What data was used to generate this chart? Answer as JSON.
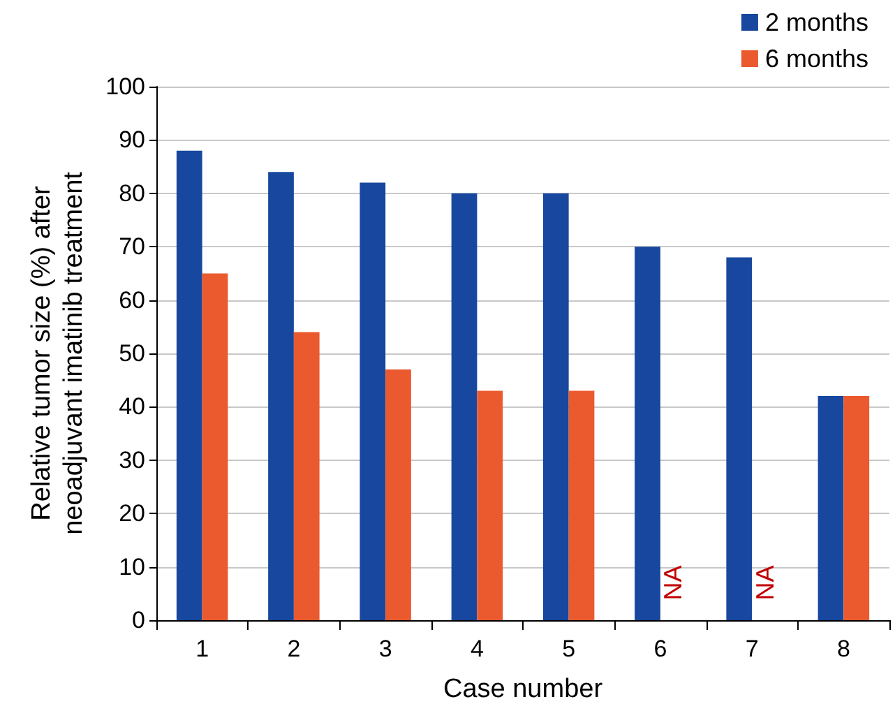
{
  "chart_data": {
    "type": "bar",
    "xlabel": "Case number",
    "ylabel": "Relative tumor size (%) after\nneoadjuvant imatinib treatment",
    "categories": [
      "1",
      "2",
      "3",
      "4",
      "5",
      "6",
      "7",
      "8"
    ],
    "series": [
      {
        "name": "2 months",
        "color": "#17479e",
        "values": [
          88,
          84,
          82,
          80,
          80,
          70,
          68,
          42
        ]
      },
      {
        "name": "6 months",
        "color": "#ea5a2e",
        "values": [
          65,
          54,
          47,
          43,
          43,
          null,
          null,
          42
        ]
      }
    ],
    "annotations": [
      {
        "text": "NA",
        "x": "6",
        "y": 7
      },
      {
        "text": "NA",
        "x": "7",
        "y": 7
      }
    ],
    "ylim": [
      0,
      100
    ],
    "yticks": [
      0,
      10,
      20,
      30,
      40,
      50,
      60,
      70,
      80,
      90,
      100
    ],
    "grid": "y",
    "legend": "top right"
  }
}
